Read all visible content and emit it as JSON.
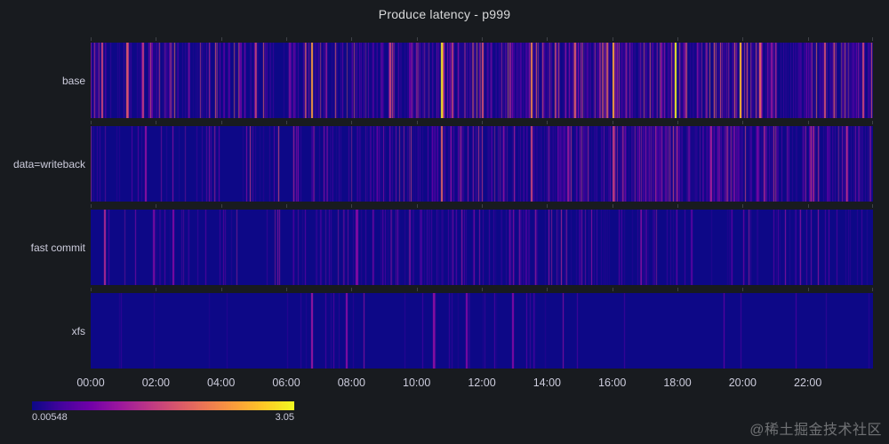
{
  "watermark": "@稀土掘金技术社区",
  "chart_data": {
    "type": "heatmap",
    "title": "Produce latency - p999",
    "colormap": "plasma",
    "legend": {
      "min_label": "0.00548",
      "max_label": "3.05"
    },
    "value_scale": {
      "min": 0.00548,
      "max": 3.05
    },
    "x_ticks": [
      "00:00",
      "02:00",
      "04:00",
      "06:00",
      "08:00",
      "10:00",
      "12:00",
      "14:00",
      "16:00",
      "18:00",
      "20:00",
      "22:00"
    ],
    "x_hours": 24,
    "rows": [
      {
        "label": "base",
        "seed": 101,
        "max_line": 0.62,
        "density": [
          0.55,
          0.5,
          0.42,
          0.38,
          0.35,
          0.4,
          0.5,
          0.48,
          0.55,
          0.6,
          0.62,
          0.6,
          0.62,
          0.66,
          0.7,
          0.72,
          0.75,
          0.72,
          0.7,
          0.68,
          0.7,
          0.66,
          0.62,
          0.58
        ],
        "spikes": [
          {
            "time": "00:20",
            "value": 1.5
          },
          {
            "time": "01:05",
            "value": 1.7
          },
          {
            "time": "01:35",
            "value": 1.4
          },
          {
            "time": "06:45",
            "value": 2.3
          },
          {
            "time": "09:10",
            "value": 1.5
          },
          {
            "time": "10:45",
            "value": 2.9
          },
          {
            "time": "12:00",
            "value": 1.6
          },
          {
            "time": "13:30",
            "value": 2.1
          },
          {
            "time": "14:50",
            "value": 1.7
          },
          {
            "time": "16:00",
            "value": 2.4
          },
          {
            "time": "17:55",
            "value": 3.0
          },
          {
            "time": "19:55",
            "value": 2.6
          },
          {
            "time": "20:30",
            "value": 1.8
          },
          {
            "time": "22:30",
            "value": 1.6
          },
          {
            "time": "23:40",
            "value": 1.5
          }
        ]
      },
      {
        "label": "data=writeback",
        "seed": 202,
        "max_line": 0.45,
        "density": [
          0.22,
          0.18,
          0.18,
          0.17,
          0.18,
          0.2,
          0.26,
          0.32,
          0.38,
          0.42,
          0.46,
          0.42,
          0.46,
          0.5,
          0.52,
          0.55,
          0.6,
          0.56,
          0.6,
          0.56,
          0.6,
          0.55,
          0.5,
          0.46
        ],
        "spikes": [
          {
            "time": "01:40",
            "value": 0.9
          },
          {
            "time": "10:45",
            "value": 1.8
          },
          {
            "time": "13:30",
            "value": 1.5
          },
          {
            "time": "16:00",
            "value": 1.4
          },
          {
            "time": "19:00",
            "value": 1.1
          }
        ]
      },
      {
        "label": "fast commit",
        "seed": 303,
        "max_line": 0.34,
        "density": [
          0.16,
          0.14,
          0.18,
          0.14,
          0.14,
          0.18,
          0.24,
          0.3,
          0.3,
          0.3,
          0.34,
          0.3,
          0.3,
          0.34,
          0.3,
          0.3,
          0.3,
          0.26,
          0.24,
          0.2,
          0.2,
          0.2,
          0.16,
          0.14
        ],
        "spikes": [
          {
            "time": "00:25",
            "value": 1.2
          },
          {
            "time": "02:30",
            "value": 0.8
          },
          {
            "time": "08:10",
            "value": 0.8
          }
        ]
      },
      {
        "label": "xfs",
        "seed": 404,
        "max_line": 0.3,
        "density": [
          0.05,
          0.03,
          0.03,
          0.03,
          0.03,
          0.04,
          0.1,
          0.07,
          0.1,
          0.05,
          0.12,
          0.1,
          0.08,
          0.1,
          0.04,
          0.03,
          0.03,
          0.03,
          0.03,
          0.03,
          0.03,
          0.02,
          0.02,
          0.02
        ],
        "spikes": [
          {
            "time": "06:45",
            "value": 1.0
          },
          {
            "time": "07:50",
            "value": 0.85
          },
          {
            "time": "10:30",
            "value": 0.9
          },
          {
            "time": "11:30",
            "value": 0.8
          },
          {
            "time": "12:55",
            "value": 0.8
          }
        ]
      }
    ]
  }
}
